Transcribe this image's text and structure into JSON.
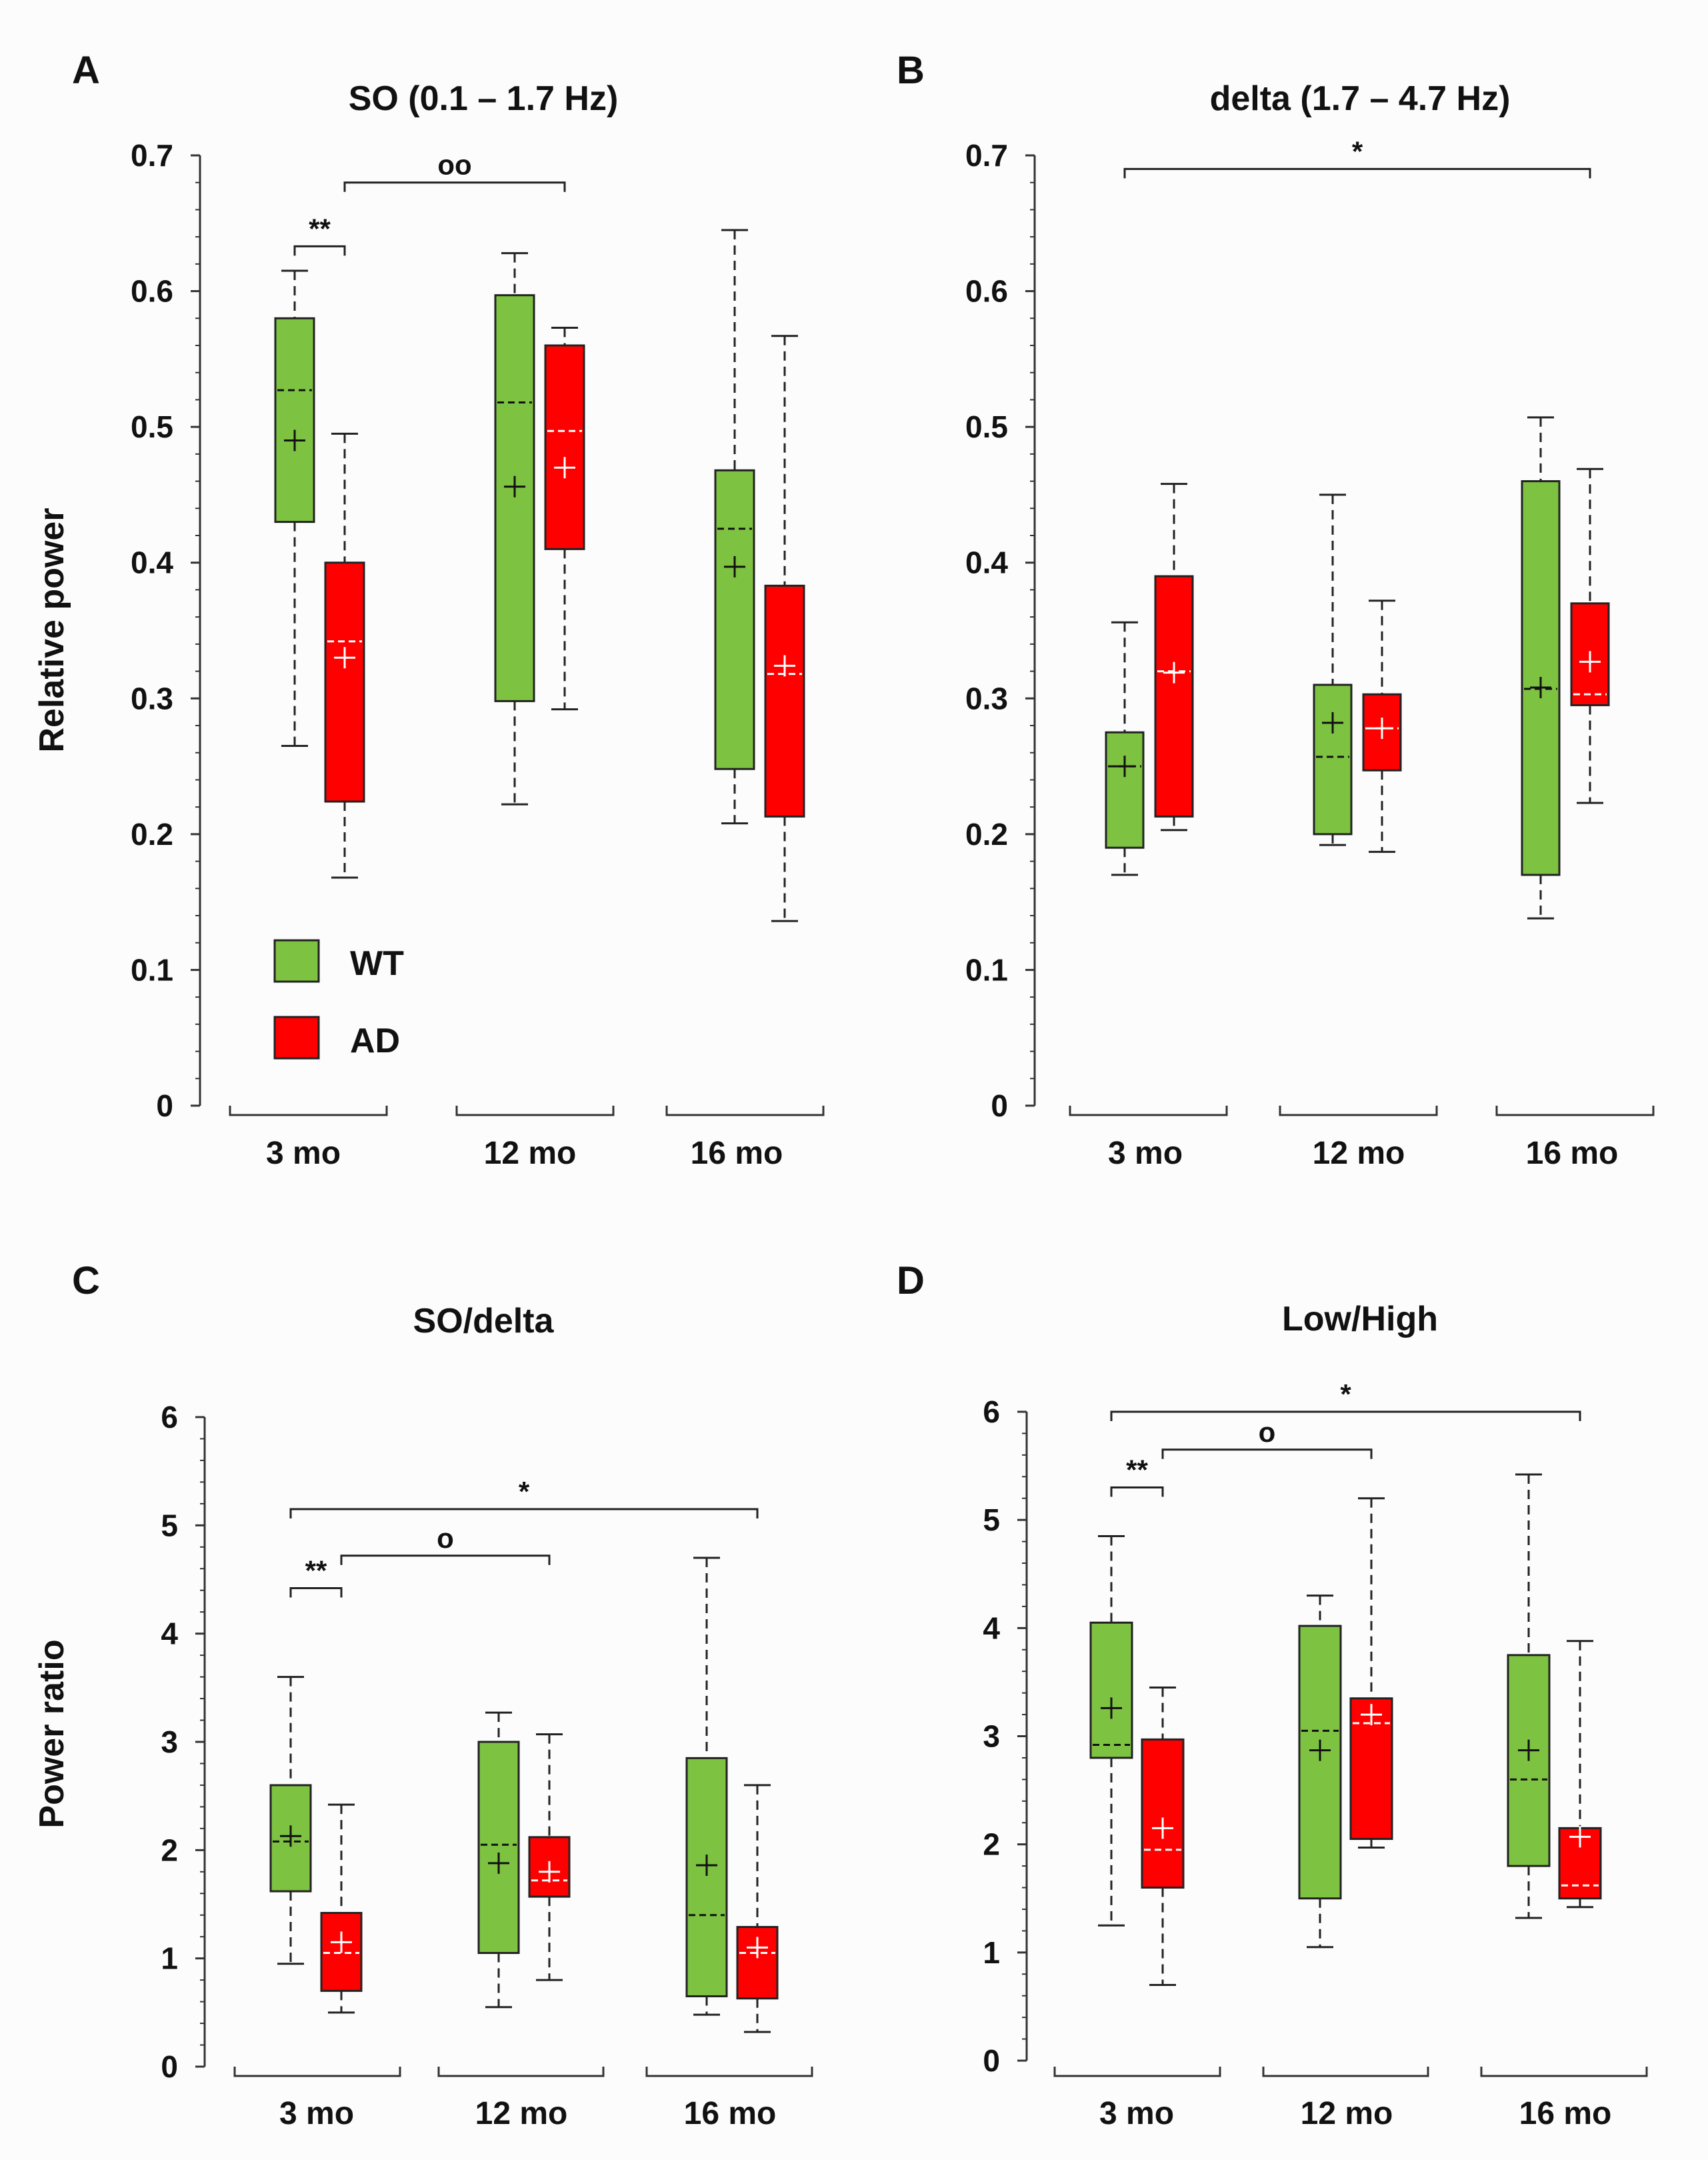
{
  "colors": {
    "wt": "#7ec242",
    "ad": "#ff0000",
    "axis": "#333333",
    "background": "#fcfcfc"
  },
  "legend": {
    "wt_label": "WT",
    "ad_label": "AD"
  },
  "chart_data": [
    {
      "panel": "A",
      "type": "box",
      "title": "SO (0.1 – 1.7 Hz)",
      "ylabel": "Relative power",
      "ylim": [
        0,
        0.7
      ],
      "yticks": [
        "0",
        "0.1",
        "0.2",
        "0.3",
        "0.4",
        "0.5",
        "0.6",
        "0.7"
      ],
      "categories": [
        "3 mo",
        "12 mo",
        "16 mo"
      ],
      "series": [
        {
          "name": "WT",
          "boxes": [
            {
              "min": 0.265,
              "q1": 0.43,
              "median": 0.527,
              "q3": 0.58,
              "max": 0.615,
              "mean": 0.49
            },
            {
              "min": 0.222,
              "q1": 0.298,
              "median": 0.518,
              "q3": 0.597,
              "max": 0.628,
              "mean": 0.456
            },
            {
              "min": 0.208,
              "q1": 0.248,
              "median": 0.425,
              "q3": 0.468,
              "max": 0.645,
              "mean": 0.397
            }
          ]
        },
        {
          "name": "AD",
          "boxes": [
            {
              "min": 0.168,
              "q1": 0.224,
              "median": 0.342,
              "q3": 0.4,
              "max": 0.495,
              "mean": 0.33
            },
            {
              "min": 0.292,
              "q1": 0.41,
              "median": 0.497,
              "q3": 0.56,
              "max": 0.573,
              "mean": 0.47
            },
            {
              "min": 0.136,
              "q1": 0.213,
              "median": 0.318,
              "q3": 0.383,
              "max": 0.567,
              "mean": 0.324
            }
          ]
        }
      ],
      "annotations": [
        {
          "label": "**",
          "from": [
            0,
            "WT"
          ],
          "to": [
            0,
            "AD"
          ],
          "y": 0.633
        },
        {
          "label": "oo",
          "from": [
            0,
            "AD"
          ],
          "to": [
            1,
            "AD"
          ],
          "y": 0.68
        }
      ]
    },
    {
      "panel": "B",
      "type": "box",
      "title": "delta (1.7 – 4.7 Hz)",
      "ylabel": "",
      "ylim": [
        0,
        0.7
      ],
      "yticks": [
        "0",
        "0.1",
        "0.2",
        "0.3",
        "0.4",
        "0.5",
        "0.6",
        "0.7"
      ],
      "categories": [
        "3 mo",
        "12 mo",
        "16 mo"
      ],
      "series": [
        {
          "name": "WT",
          "boxes": [
            {
              "min": 0.17,
              "q1": 0.19,
              "median": 0.25,
              "q3": 0.275,
              "max": 0.356,
              "mean": 0.25
            },
            {
              "min": 0.192,
              "q1": 0.2,
              "median": 0.257,
              "q3": 0.31,
              "max": 0.45,
              "mean": 0.282
            },
            {
              "min": 0.138,
              "q1": 0.17,
              "median": 0.307,
              "q3": 0.46,
              "max": 0.507,
              "mean": 0.308
            }
          ]
        },
        {
          "name": "AD",
          "boxes": [
            {
              "min": 0.203,
              "q1": 0.213,
              "median": 0.32,
              "q3": 0.39,
              "max": 0.458,
              "mean": 0.319
            },
            {
              "min": 0.187,
              "q1": 0.247,
              "median": 0.278,
              "q3": 0.303,
              "max": 0.372,
              "mean": 0.278
            },
            {
              "min": 0.223,
              "q1": 0.295,
              "median": 0.303,
              "q3": 0.37,
              "max": 0.469,
              "mean": 0.327
            }
          ]
        }
      ],
      "annotations": [
        {
          "label": "*",
          "from": [
            0,
            "WT"
          ],
          "to": [
            2,
            "AD"
          ],
          "y": 0.69
        }
      ]
    },
    {
      "panel": "C",
      "type": "box",
      "title": "SO/delta",
      "ylabel": "Power ratio",
      "ylim": [
        0,
        6
      ],
      "yticks": [
        "0",
        "1",
        "2",
        "3",
        "4",
        "5",
        "6"
      ],
      "categories": [
        "3 mo",
        "12 mo",
        "16 mo"
      ],
      "series": [
        {
          "name": "WT",
          "boxes": [
            {
              "min": 0.95,
              "q1": 1.62,
              "median": 2.08,
              "q3": 2.6,
              "max": 3.6,
              "mean": 2.13
            },
            {
              "min": 0.55,
              "q1": 1.05,
              "median": 2.05,
              "q3": 3.0,
              "max": 3.27,
              "mean": 1.88
            },
            {
              "min": 0.48,
              "q1": 0.65,
              "median": 1.4,
              "q3": 2.85,
              "max": 4.7,
              "mean": 1.86
            }
          ]
        },
        {
          "name": "AD",
          "boxes": [
            {
              "min": 0.5,
              "q1": 0.7,
              "median": 1.05,
              "q3": 1.42,
              "max": 2.42,
              "mean": 1.15
            },
            {
              "min": 0.8,
              "q1": 1.57,
              "median": 1.72,
              "q3": 2.12,
              "max": 3.07,
              "mean": 1.8
            },
            {
              "min": 0.32,
              "q1": 0.63,
              "median": 1.05,
              "q3": 1.29,
              "max": 2.6,
              "mean": 1.1
            }
          ]
        }
      ],
      "annotations": [
        {
          "label": "**",
          "from": [
            0,
            "WT"
          ],
          "to": [
            0,
            "AD"
          ],
          "y": 4.42
        },
        {
          "label": "o",
          "from": [
            0,
            "AD"
          ],
          "to": [
            1,
            "AD"
          ],
          "y": 4.72
        },
        {
          "label": "*",
          "from": [
            0,
            "WT"
          ],
          "to": [
            2,
            "AD"
          ],
          "y": 5.15
        }
      ]
    },
    {
      "panel": "D",
      "type": "box",
      "title": "Low/High",
      "ylabel": "",
      "ylim": [
        0,
        6
      ],
      "yticks": [
        "0",
        "1",
        "2",
        "3",
        "4",
        "5",
        "6"
      ],
      "categories": [
        "3 mo",
        "12 mo",
        "16 mo"
      ],
      "series": [
        {
          "name": "WT",
          "boxes": [
            {
              "min": 1.25,
              "q1": 2.8,
              "median": 2.92,
              "q3": 4.05,
              "max": 4.85,
              "mean": 3.26
            },
            {
              "min": 1.05,
              "q1": 1.5,
              "median": 3.05,
              "q3": 4.02,
              "max": 4.3,
              "mean": 2.87
            },
            {
              "min": 1.32,
              "q1": 1.8,
              "median": 2.6,
              "q3": 3.75,
              "max": 5.42,
              "mean": 2.87
            }
          ]
        },
        {
          "name": "AD",
          "boxes": [
            {
              "min": 0.7,
              "q1": 1.6,
              "median": 1.95,
              "q3": 2.97,
              "max": 3.45,
              "mean": 2.15
            },
            {
              "min": 1.97,
              "q1": 2.05,
              "median": 3.12,
              "q3": 3.35,
              "max": 5.2,
              "mean": 3.2
            },
            {
              "min": 1.42,
              "q1": 1.5,
              "median": 1.62,
              "q3": 2.15,
              "max": 3.88,
              "mean": 2.07
            }
          ]
        }
      ],
      "annotations": [
        {
          "label": "**",
          "from": [
            0,
            "WT"
          ],
          "to": [
            0,
            "AD"
          ],
          "y": 5.3
        },
        {
          "label": "o",
          "from": [
            0,
            "AD"
          ],
          "to": [
            1,
            "AD"
          ],
          "y": 5.65
        },
        {
          "label": "*",
          "from": [
            0,
            "WT"
          ],
          "to": [
            2,
            "AD"
          ],
          "y": 6.0
        }
      ]
    }
  ]
}
